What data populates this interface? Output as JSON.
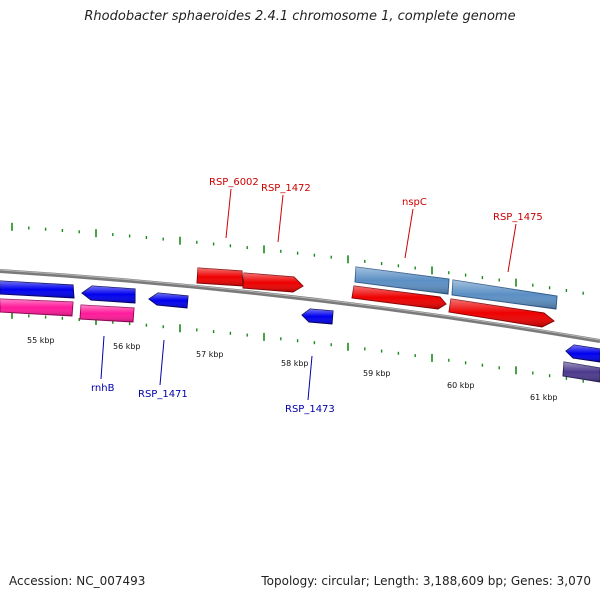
{
  "title": "Rhodobacter sphaeroides 2.4.1 chromosome 1, complete genome",
  "colors": {
    "forward_label": "#cc0000",
    "reverse_label": "#0000aa",
    "tick": "#1a8a1a",
    "backbone": "#888888",
    "gene_red": "#ee0000",
    "gene_blue": "#0000ee",
    "gene_steelblue": "#5b8fc4",
    "gene_pink": "#ff1a9a",
    "gene_purple": "#4b3a8c"
  },
  "position_labels": [
    "55 kbp",
    "56 kbp",
    "57 kbp",
    "58 kbp",
    "59 kbp",
    "60 kbp",
    "61 kbp"
  ],
  "forward_gene_labels": [
    "RSP_6002",
    "RSP_1472",
    "nspC",
    "RSP_1475"
  ],
  "reverse_gene_labels": [
    "rnhB",
    "RSP_1471",
    "RSP_1473"
  ],
  "footer": {
    "accession": "Accession: NC_007493",
    "topology": "Topology: circular; Length: 3,188,609 bp; Genes: 3,070"
  }
}
